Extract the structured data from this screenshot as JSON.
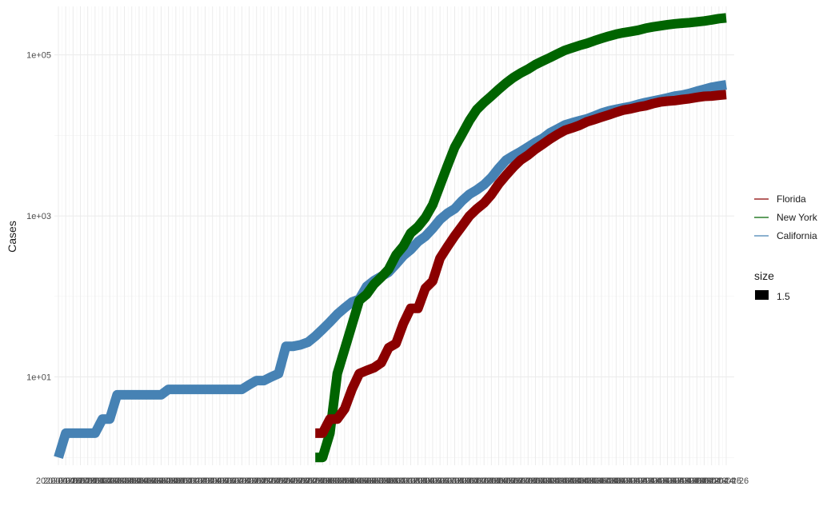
{
  "chart_data": {
    "type": "line",
    "xlabel": "",
    "ylabel": "Cases",
    "y_scale": "log10",
    "ylim": [
      0.8,
      400000
    ],
    "y_ticks": [
      {
        "value": 10,
        "label": "1e+01"
      },
      {
        "value": 1000,
        "label": "1e+03"
      },
      {
        "value": 100000,
        "label": "1e+05"
      }
    ],
    "x_axis": {
      "start": "2020-01-26",
      "end": "2020-04-26",
      "tick_labels_overlapping": true,
      "first_label_fragment": "2020",
      "last_label_fragment": "04-26"
    },
    "grid": true,
    "legend_position": "right",
    "legend": {
      "color_entries": [
        "Florida",
        "New York",
        "California"
      ],
      "size_title": "size",
      "size_value": "1.5"
    },
    "colors": {
      "Florida": "#8b0000",
      "New York": "#006400",
      "California": "#4682b4"
    },
    "series": [
      {
        "name": "California",
        "color": "#4682b4",
        "x": [
          "2020-01-26",
          "2020-01-27",
          "2020-01-28",
          "2020-01-29",
          "2020-01-30",
          "2020-01-31",
          "2020-02-01",
          "2020-02-02",
          "2020-02-03",
          "2020-02-04",
          "2020-02-05",
          "2020-02-06",
          "2020-02-07",
          "2020-02-08",
          "2020-02-09",
          "2020-02-10",
          "2020-02-11",
          "2020-02-12",
          "2020-02-13",
          "2020-02-14",
          "2020-02-15",
          "2020-02-16",
          "2020-02-17",
          "2020-02-18",
          "2020-02-19",
          "2020-02-20",
          "2020-02-21",
          "2020-02-22",
          "2020-02-23",
          "2020-02-24",
          "2020-02-25",
          "2020-02-26",
          "2020-02-27",
          "2020-02-28",
          "2020-02-29",
          "2020-03-01",
          "2020-03-02",
          "2020-03-03",
          "2020-03-04",
          "2020-03-05",
          "2020-03-06",
          "2020-03-07",
          "2020-03-08",
          "2020-03-09",
          "2020-03-10",
          "2020-03-11",
          "2020-03-12",
          "2020-03-13",
          "2020-03-14",
          "2020-03-15",
          "2020-03-16",
          "2020-03-17",
          "2020-03-18",
          "2020-03-19",
          "2020-03-20",
          "2020-03-21",
          "2020-03-22",
          "2020-03-23",
          "2020-03-24",
          "2020-03-25",
          "2020-03-26",
          "2020-03-27",
          "2020-03-28",
          "2020-03-29",
          "2020-03-30",
          "2020-03-31",
          "2020-04-01",
          "2020-04-02",
          "2020-04-03",
          "2020-04-04",
          "2020-04-05",
          "2020-04-06",
          "2020-04-07",
          "2020-04-08",
          "2020-04-09",
          "2020-04-10",
          "2020-04-11",
          "2020-04-12",
          "2020-04-13",
          "2020-04-14",
          "2020-04-15",
          "2020-04-16",
          "2020-04-17",
          "2020-04-18",
          "2020-04-19",
          "2020-04-20",
          "2020-04-21",
          "2020-04-22",
          "2020-04-23",
          "2020-04-24",
          "2020-04-25",
          "2020-04-26"
        ],
        "values": [
          1,
          2,
          2,
          2,
          2,
          2,
          3,
          3,
          6,
          6,
          6,
          6,
          6,
          6,
          6,
          7,
          7,
          7,
          7,
          7,
          7,
          7,
          7,
          7,
          7,
          7,
          8,
          9,
          9,
          10,
          11,
          24,
          24,
          25,
          27,
          32,
          39,
          48,
          60,
          72,
          85,
          92,
          133,
          157,
          177,
          200,
          252,
          320,
          380,
          478,
          557,
          698,
          900,
          1076,
          1226,
          1540,
          1851,
          2102,
          2446,
          2998,
          3899,
          4914,
          5607,
          6300,
          7187,
          8211,
          9191,
          10773,
          12026,
          13438,
          14340,
          15182,
          16053,
          17351,
          18897,
          20160,
          21105,
          22005,
          22927,
          24335,
          25622,
          26690,
          27880,
          29175,
          30755,
          31593,
          33180,
          35409,
          37351,
          39543,
          41137,
          42437
        ]
      },
      {
        "name": "New York",
        "color": "#006400",
        "x": [
          "2020-03-01",
          "2020-03-02",
          "2020-03-03",
          "2020-03-04",
          "2020-03-05",
          "2020-03-06",
          "2020-03-07",
          "2020-03-08",
          "2020-03-09",
          "2020-03-10",
          "2020-03-11",
          "2020-03-12",
          "2020-03-13",
          "2020-03-14",
          "2020-03-15",
          "2020-03-16",
          "2020-03-17",
          "2020-03-18",
          "2020-03-19",
          "2020-03-20",
          "2020-03-21",
          "2020-03-22",
          "2020-03-23",
          "2020-03-24",
          "2020-03-25",
          "2020-03-26",
          "2020-03-27",
          "2020-03-28",
          "2020-03-29",
          "2020-03-30",
          "2020-03-31",
          "2020-04-01",
          "2020-04-02",
          "2020-04-03",
          "2020-04-04",
          "2020-04-05",
          "2020-04-06",
          "2020-04-07",
          "2020-04-08",
          "2020-04-09",
          "2020-04-10",
          "2020-04-11",
          "2020-04-12",
          "2020-04-13",
          "2020-04-14",
          "2020-04-15",
          "2020-04-16",
          "2020-04-17",
          "2020-04-18",
          "2020-04-19",
          "2020-04-20",
          "2020-04-21",
          "2020-04-22",
          "2020-04-23",
          "2020-04-24",
          "2020-04-25",
          "2020-04-26"
        ],
        "values": [
          1,
          1,
          2,
          11,
          22,
          44,
          89,
          106,
          142,
          173,
          217,
          326,
          421,
          610,
          732,
          950,
          1374,
          2382,
          4152,
          7102,
          10356,
          15168,
          20875,
          25665,
          30811,
          37258,
          44635,
          52318,
          59513,
          66497,
          75795,
          83889,
          92506,
          102863,
          113704,
          122031,
          130689,
          138863,
          149316,
          159937,
          170512,
          180458,
          188694,
          195031,
          202208,
          213779,
          222284,
          229642,
          236732,
          242786,
          247512,
          251690,
          257216,
          263460,
          271590,
          282143,
          288045
        ]
      },
      {
        "name": "Florida",
        "color": "#8b0000",
        "x": [
          "2020-03-01",
          "2020-03-02",
          "2020-03-03",
          "2020-03-04",
          "2020-03-05",
          "2020-03-06",
          "2020-03-07",
          "2020-03-08",
          "2020-03-09",
          "2020-03-10",
          "2020-03-11",
          "2020-03-12",
          "2020-03-13",
          "2020-03-14",
          "2020-03-15",
          "2020-03-16",
          "2020-03-17",
          "2020-03-18",
          "2020-03-19",
          "2020-03-20",
          "2020-03-21",
          "2020-03-22",
          "2020-03-23",
          "2020-03-24",
          "2020-03-25",
          "2020-03-26",
          "2020-03-27",
          "2020-03-28",
          "2020-03-29",
          "2020-03-30",
          "2020-03-31",
          "2020-04-01",
          "2020-04-02",
          "2020-04-03",
          "2020-04-04",
          "2020-04-05",
          "2020-04-06",
          "2020-04-07",
          "2020-04-08",
          "2020-04-09",
          "2020-04-10",
          "2020-04-11",
          "2020-04-12",
          "2020-04-13",
          "2020-04-14",
          "2020-04-15",
          "2020-04-16",
          "2020-04-17",
          "2020-04-18",
          "2020-04-19",
          "2020-04-20",
          "2020-04-21",
          "2020-04-22",
          "2020-04-23",
          "2020-04-24",
          "2020-04-25",
          "2020-04-26"
        ],
        "values": [
          2,
          2,
          3,
          3,
          4,
          7,
          11,
          12,
          13,
          15,
          23,
          26,
          46,
          71,
          71,
          126,
          155,
          297,
          413,
          563,
          748,
          995,
          1219,
          1444,
          1839,
          2487,
          3198,
          4042,
          4950,
          5694,
          6741,
          7773,
          9008,
          10268,
          11545,
          12348,
          13327,
          14747,
          15698,
          16819,
          17968,
          19347,
          20601,
          21367,
          22519,
          23340,
          24753,
          25996,
          26660,
          27058,
          27869,
          28576,
          29648,
          30533,
          30839,
          31532,
          32138
        ]
      }
    ]
  }
}
